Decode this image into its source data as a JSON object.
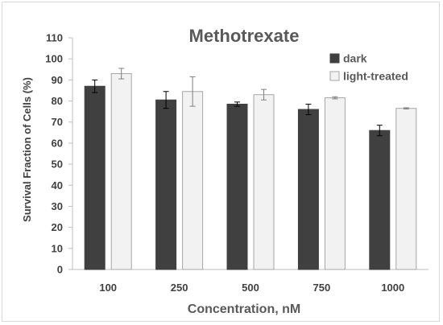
{
  "chart_data": {
    "type": "bar",
    "title": "Methotrexate",
    "xlabel": "Concentration, nM",
    "ylabel": "Survival Fraction of Cells (%)",
    "categories": [
      "100",
      "250",
      "500",
      "750",
      "1000"
    ],
    "ylim": [
      0,
      110
    ],
    "yticks": [
      0,
      10,
      20,
      30,
      40,
      50,
      60,
      70,
      80,
      90,
      100,
      110
    ],
    "grid": false,
    "legend_position": "top-right",
    "series": [
      {
        "name": "dark",
        "color": "#404040",
        "values": [
          87,
          80.5,
          78.5,
          76,
          66
        ],
        "errors": [
          3,
          4,
          1,
          2.5,
          2.5
        ]
      },
      {
        "name": "light-treated",
        "color": "#f2f2f2",
        "values": [
          93,
          84.5,
          83,
          81.5,
          76.5
        ],
        "errors": [
          2.5,
          7,
          2.5,
          0.5,
          0.3
        ]
      }
    ]
  }
}
